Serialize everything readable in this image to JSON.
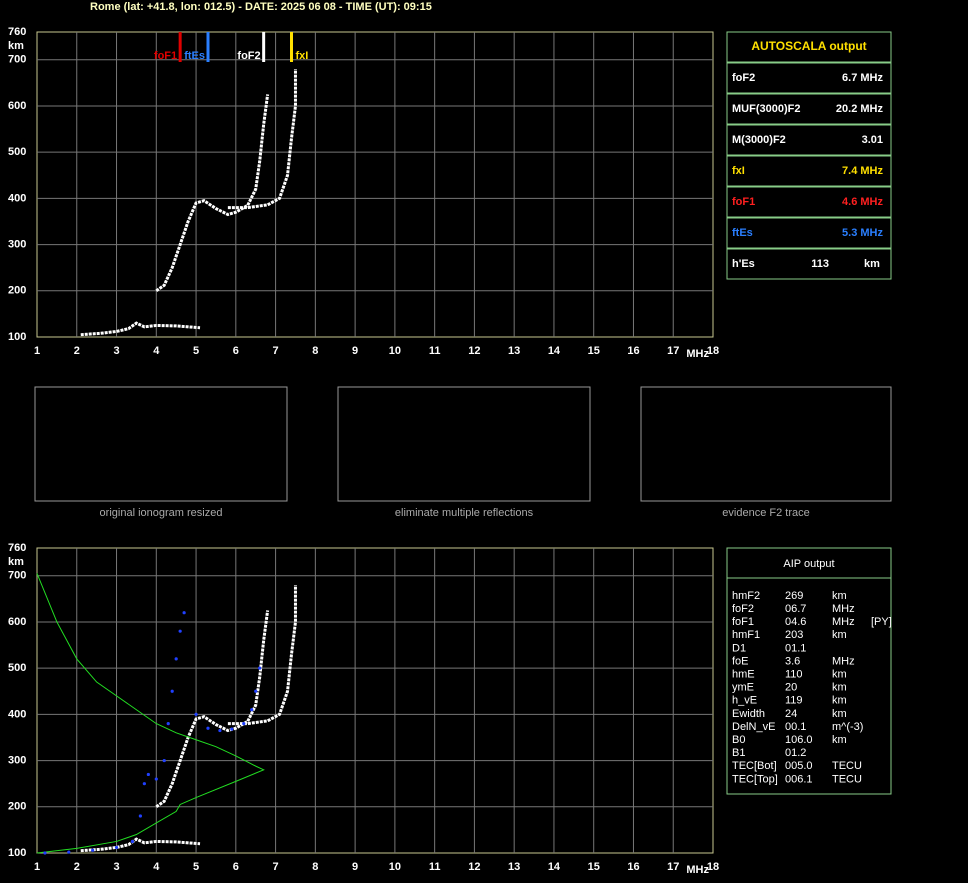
{
  "header": {
    "title": "Rome (lat: +41.8, lon: 012.5) - DATE: 2025 06 08 - TIME (UT): 09:15"
  },
  "chart_data": [
    {
      "type": "line",
      "x_label": "MHz",
      "y_label": "km",
      "xlim": [
        1,
        18
      ],
      "xticks": [
        1,
        2,
        3,
        4,
        5,
        6,
        7,
        8,
        9,
        10,
        11,
        12,
        13,
        14,
        15,
        16,
        17,
        18
      ],
      "ylim": [
        100,
        760
      ],
      "yticks": [
        100,
        200,
        300,
        400,
        500,
        600,
        700,
        760
      ],
      "grid": true,
      "markers": [
        {
          "label": "foF1",
          "x": 4.6,
          "color": "#e00000",
          "side": "left"
        },
        {
          "label": "ftEs",
          "x": 5.3,
          "color": "#2a7fff",
          "side": "left"
        },
        {
          "label": "foF2",
          "x": 6.7,
          "color": "#ffffff",
          "side": "left"
        },
        {
          "label": "fxI",
          "x": 7.4,
          "color": "#ffe000",
          "side": "right"
        }
      ],
      "series": [
        {
          "color": "#ffffff",
          "style": "trace",
          "x": [
            2.1,
            2.6,
            3.0,
            3.3,
            3.5,
            3.7,
            4.0,
            4.5,
            5.1
          ],
          "values": [
            105,
            108,
            112,
            118,
            130,
            122,
            125,
            124,
            120
          ]
        },
        {
          "color": "#ffffff",
          "style": "trace",
          "x": [
            4.0,
            4.2,
            4.4,
            4.6,
            4.8,
            5.0,
            5.2,
            5.5,
            5.8,
            6.0,
            6.3,
            6.5,
            6.6,
            6.7,
            6.8
          ],
          "values": [
            200,
            212,
            250,
            300,
            350,
            390,
            395,
            378,
            365,
            370,
            385,
            420,
            480,
            560,
            625
          ]
        },
        {
          "color": "#ffffff",
          "style": "trace",
          "x": [
            5.8,
            6.3,
            6.8,
            7.1,
            7.3,
            7.4,
            7.5,
            7.5
          ],
          "values": [
            380,
            380,
            386,
            400,
            450,
            530,
            600,
            680
          ]
        }
      ]
    },
    {
      "type": "line",
      "x_label": "MHz",
      "y_label": "km",
      "xlim": [
        1,
        18
      ],
      "xticks": [
        1,
        2,
        3,
        4,
        5,
        6,
        7,
        8,
        9,
        10,
        11,
        12,
        13,
        14,
        15,
        16,
        17,
        18
      ],
      "ylim": [
        100,
        760
      ],
      "yticks": [
        100,
        200,
        300,
        400,
        500,
        600,
        700,
        760
      ],
      "grid": true,
      "series": [
        {
          "color": "#ffffff",
          "style": "trace",
          "x": [
            2.1,
            2.6,
            3.0,
            3.3,
            3.5,
            3.7,
            4.0,
            4.5,
            5.1
          ],
          "values": [
            105,
            108,
            112,
            118,
            130,
            122,
            125,
            124,
            120
          ]
        },
        {
          "color": "#ffffff",
          "style": "trace",
          "x": [
            4.0,
            4.2,
            4.4,
            4.6,
            4.8,
            5.0,
            5.2,
            5.5,
            5.8,
            6.0,
            6.3,
            6.5,
            6.6,
            6.7,
            6.8
          ],
          "values": [
            200,
            212,
            250,
            300,
            350,
            390,
            395,
            378,
            365,
            370,
            385,
            420,
            480,
            560,
            625
          ]
        },
        {
          "color": "#ffffff",
          "style": "trace",
          "x": [
            5.8,
            6.3,
            6.8,
            7.1,
            7.3,
            7.4,
            7.5,
            7.5
          ],
          "values": [
            380,
            380,
            386,
            400,
            450,
            530,
            600,
            680
          ]
        },
        {
          "color": "#22dd22",
          "style": "thin",
          "x": [
            1.0,
            1.5,
            2.0,
            2.5,
            3.0,
            3.5,
            4.0,
            4.5,
            5.0,
            5.5,
            6.0,
            6.5,
            6.7,
            6.0,
            5.0,
            4.6,
            4.5,
            4.0,
            3.5,
            3.0,
            2.0,
            1.0
          ],
          "values": [
            705,
            600,
            520,
            470,
            440,
            410,
            380,
            360,
            345,
            330,
            310,
            288,
            280,
            255,
            220,
            205,
            190,
            165,
            140,
            125,
            110,
            100
          ]
        },
        {
          "color": "#2040ff",
          "style": "dots",
          "x": [
            1.2,
            1.8,
            2.4,
            3.0,
            3.4,
            3.6,
            3.7,
            3.8,
            4.0,
            4.2,
            4.3,
            4.4,
            4.5,
            4.6,
            4.7,
            5.0,
            5.3,
            5.6,
            5.9,
            6.2,
            6.4,
            6.5,
            6.6
          ],
          "values": [
            100,
            102,
            106,
            112,
            125,
            180,
            250,
            270,
            260,
            300,
            380,
            450,
            520,
            580,
            620,
            400,
            370,
            365,
            368,
            380,
            410,
            450,
            500
          ]
        }
      ]
    }
  ],
  "thumbnails": [
    "original ionogram resized",
    "eliminate multiple reflections",
    "evidence F2 trace"
  ],
  "autoscala": {
    "title": "AUTOSCALA output",
    "rows": [
      {
        "label": "foF2",
        "value": "6.7 MHz",
        "color": "#ffffff"
      },
      {
        "label": "MUF(3000)F2",
        "value": "20.2 MHz",
        "color": "#ffffff"
      },
      {
        "label": "M(3000)F2",
        "value": "3.01",
        "color": "#ffffff"
      },
      {
        "label": "fxI",
        "value": "7.4 MHz",
        "color": "#ffe000"
      },
      {
        "label": "foF1",
        "value": "4.6 MHz",
        "color": "#ff2020"
      },
      {
        "label": "ftEs",
        "value": "5.3 MHz",
        "color": "#2a7fff"
      },
      {
        "label": "h'Es",
        "value": "113",
        "unit": "km",
        "color": "#ffffff"
      }
    ]
  },
  "aip": {
    "title": "AIP output",
    "rows": [
      [
        "hmF2",
        "269",
        "km"
      ],
      [
        "foF2",
        "06.7",
        "MHz"
      ],
      [
        "foF1",
        "04.6",
        "MHz",
        "[PY]"
      ],
      [
        "hmF1",
        "203",
        "km"
      ],
      [
        "D1",
        "01.1"
      ],
      [
        "foE",
        "3.6",
        "MHz"
      ],
      [
        "hmE",
        "110",
        "km"
      ],
      [
        "ymE",
        "20",
        "km"
      ],
      [
        "h_vE",
        "119",
        "km"
      ],
      [
        "Ewidth",
        "24",
        "km"
      ],
      [
        "DelN_vE",
        "00.1",
        "m^(-3)"
      ],
      [
        "B0",
        "106.0",
        "km"
      ],
      [
        "B1",
        "01.2"
      ],
      [
        "TEC[Bot]",
        "005.0",
        "TECU"
      ],
      [
        "TEC[Top]",
        "006.1",
        "TECU"
      ]
    ]
  }
}
